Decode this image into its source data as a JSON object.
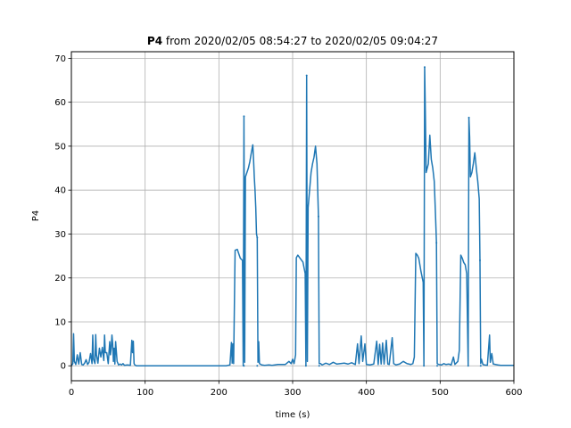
{
  "chart_data": {
    "type": "line",
    "title": {
      "prefix": "P4",
      "rest": " from 2020/02/05 08:54:27 to 2020/02/05 09:04:27"
    },
    "xlabel": "time (s)",
    "ylabel": "P4",
    "xlim": [
      0,
      600
    ],
    "ylim": [
      -3.4,
      71.5
    ],
    "xticks": [
      0,
      100,
      200,
      300,
      400,
      500,
      600
    ],
    "yticks": [
      0,
      10,
      20,
      30,
      40,
      50,
      60,
      70
    ],
    "grid": true,
    "line_color": "#1f77b4",
    "series": [
      {
        "points": [
          [
            0,
            0
          ],
          [
            2,
            0.5
          ],
          [
            3,
            7.3
          ],
          [
            4,
            1.0
          ],
          [
            6,
            0.3
          ],
          [
            8,
            2.5
          ],
          [
            10,
            0.4
          ],
          [
            12,
            3.0
          ],
          [
            14,
            0.3
          ],
          [
            16,
            0.2
          ],
          [
            18,
            0.6
          ],
          [
            20,
            1.4
          ],
          [
            22,
            0.3
          ],
          [
            24,
            0.8
          ],
          [
            26,
            2.8
          ],
          [
            28,
            0.5
          ],
          [
            29,
            7.0
          ],
          [
            30,
            1.5
          ],
          [
            32,
            0.5
          ],
          [
            33,
            7.1
          ],
          [
            34,
            2.5
          ],
          [
            36,
            0.6
          ],
          [
            38,
            4.0
          ],
          [
            40,
            2.0
          ],
          [
            42,
            4.2
          ],
          [
            44,
            1.2
          ],
          [
            45,
            7.0
          ],
          [
            46,
            3.0
          ],
          [
            48,
            3.0
          ],
          [
            50,
            0.5
          ],
          [
            52,
            5.5
          ],
          [
            53,
            2.5
          ],
          [
            54,
            4.0
          ],
          [
            55,
            7.0
          ],
          [
            56,
            5.0
          ],
          [
            57,
            1.0
          ],
          [
            58,
            4.0
          ],
          [
            59,
            0.4
          ],
          [
            60,
            5.5
          ],
          [
            62,
            1.0
          ],
          [
            64,
            0.2
          ],
          [
            66,
            0.4
          ],
          [
            68,
            0.2
          ],
          [
            70,
            0.5
          ],
          [
            72,
            0.1
          ],
          [
            76,
            0.2
          ],
          [
            80,
            0.1
          ],
          [
            82,
            5.8
          ],
          [
            83,
            3.0
          ],
          [
            84,
            5.6
          ],
          [
            85,
            0.5
          ],
          [
            86,
            0.2
          ],
          [
            88,
            0
          ],
          [
            100,
            0
          ],
          [
            120,
            0
          ],
          [
            140,
            0
          ],
          [
            160,
            0
          ],
          [
            180,
            0
          ],
          [
            200,
            0
          ],
          [
            210,
            0
          ],
          [
            215,
            0.2
          ],
          [
            217,
            5.3
          ],
          [
            218,
            0.6
          ],
          [
            219,
            5.0
          ],
          [
            220,
            0.5
          ],
          [
            221,
            13.5
          ],
          [
            222,
            26.3
          ],
          [
            225,
            26.5
          ],
          [
            227,
            25.5
          ],
          [
            229,
            24.5
          ],
          [
            232,
            24.0
          ],
          [
            233,
            0
          ],
          [
            234,
            56.8
          ],
          [
            235,
            0.8
          ],
          [
            236,
            43.0
          ],
          [
            238,
            44.0
          ],
          [
            240,
            45.0
          ],
          [
            242,
            46.5
          ],
          [
            244,
            48.5
          ],
          [
            246,
            50.3
          ],
          [
            247,
            47.0
          ],
          [
            248,
            43.0
          ],
          [
            249,
            40.0
          ],
          [
            250,
            36.0
          ],
          [
            251,
            30.0
          ],
          [
            252,
            29.2
          ],
          [
            253,
            0.8
          ],
          [
            254,
            5.5
          ],
          [
            255,
            0.5
          ],
          [
            258,
            0.2
          ],
          [
            262,
            0.1
          ],
          [
            268,
            0.2
          ],
          [
            272,
            0.1
          ],
          [
            280,
            0.3
          ],
          [
            290,
            0.3
          ],
          [
            295,
            1.0
          ],
          [
            298,
            0.5
          ],
          [
            300,
            1.5
          ],
          [
            302,
            0.5
          ],
          [
            304,
            2.5
          ],
          [
            305,
            24.6
          ],
          [
            307,
            25.2
          ],
          [
            310,
            24.5
          ],
          [
            314,
            23.6
          ],
          [
            317,
            21.0
          ],
          [
            318,
            0
          ],
          [
            319,
            66.1
          ],
          [
            320,
            1.0
          ],
          [
            321,
            36.0
          ],
          [
            323,
            40.0
          ],
          [
            325,
            44.0
          ],
          [
            327,
            46.0
          ],
          [
            329,
            47.5
          ],
          [
            331,
            50.0
          ],
          [
            333,
            46.0
          ],
          [
            335,
            34.0
          ],
          [
            336,
            0.5
          ],
          [
            338,
            0.5
          ],
          [
            340,
            0.2
          ],
          [
            345,
            0.6
          ],
          [
            350,
            0.3
          ],
          [
            355,
            0.8
          ],
          [
            360,
            0.4
          ],
          [
            365,
            0.5
          ],
          [
            370,
            0.6
          ],
          [
            375,
            0.4
          ],
          [
            380,
            0.7
          ],
          [
            385,
            0.3
          ],
          [
            388,
            5.0
          ],
          [
            390,
            0.5
          ],
          [
            393,
            6.8
          ],
          [
            395,
            1.0
          ],
          [
            398,
            5.0
          ],
          [
            400,
            0.3
          ],
          [
            405,
            0.2
          ],
          [
            410,
            0.4
          ],
          [
            414,
            5.6
          ],
          [
            416,
            0.3
          ],
          [
            418,
            4.9
          ],
          [
            420,
            0.4
          ],
          [
            422,
            5.2
          ],
          [
            424,
            0.4
          ],
          [
            427,
            5.8
          ],
          [
            429,
            0.4
          ],
          [
            431,
            0.3
          ],
          [
            435,
            6.4
          ],
          [
            437,
            0.5
          ],
          [
            440,
            0.2
          ],
          [
            445,
            0.4
          ],
          [
            450,
            1.0
          ],
          [
            455,
            0.5
          ],
          [
            460,
            0.3
          ],
          [
            463,
            0.5
          ],
          [
            465,
            2.0
          ],
          [
            467,
            25.6
          ],
          [
            469,
            25.2
          ],
          [
            471,
            24.5
          ],
          [
            474,
            21.5
          ],
          [
            477,
            19.0
          ],
          [
            478,
            0
          ],
          [
            479,
            68.0
          ],
          [
            480,
            57.0
          ],
          [
            481,
            44.0
          ],
          [
            484,
            46.0
          ],
          [
            486,
            52.5
          ],
          [
            488,
            47.0
          ],
          [
            490,
            45.0
          ],
          [
            492,
            42.0
          ],
          [
            494,
            33.0
          ],
          [
            495,
            28.0
          ],
          [
            496,
            0.5
          ],
          [
            498,
            0.3
          ],
          [
            502,
            0.2
          ],
          [
            505,
            0.5
          ],
          [
            508,
            0.3
          ],
          [
            512,
            0.4
          ],
          [
            515,
            0.2
          ],
          [
            518,
            2.0
          ],
          [
            520,
            0.3
          ],
          [
            524,
            1.0
          ],
          [
            526,
            3.5
          ],
          [
            528,
            25.2
          ],
          [
            530,
            24.5
          ],
          [
            532,
            23.5
          ],
          [
            534,
            23.0
          ],
          [
            536,
            21.0
          ],
          [
            538,
            0
          ],
          [
            539,
            56.5
          ],
          [
            540,
            52.0
          ],
          [
            541,
            43.0
          ],
          [
            543,
            44.0
          ],
          [
            545,
            46.0
          ],
          [
            547,
            48.5
          ],
          [
            549,
            45.0
          ],
          [
            551,
            42.0
          ],
          [
            553,
            38.0
          ],
          [
            554,
            24.0
          ],
          [
            555,
            0.5
          ],
          [
            556,
            1.5
          ],
          [
            558,
            0.3
          ],
          [
            560,
            0.2
          ],
          [
            564,
            0.1
          ],
          [
            567,
            7.0
          ],
          [
            568,
            0.8
          ],
          [
            570,
            2.8
          ],
          [
            572,
            0.4
          ],
          [
            575,
            0.3
          ],
          [
            578,
            0.2
          ],
          [
            582,
            0.1
          ],
          [
            588,
            0.1
          ],
          [
            594,
            0.1
          ],
          [
            600,
            0.1
          ]
        ],
        "markers": [
          [
            234,
            0
          ],
          [
            234,
            56.8
          ],
          [
            252,
            29.2
          ],
          [
            252,
            0
          ],
          [
            318,
            0
          ],
          [
            319,
            66.1
          ],
          [
            335,
            34
          ],
          [
            336,
            0
          ],
          [
            478,
            0
          ],
          [
            479,
            68.0
          ],
          [
            495,
            28
          ],
          [
            496,
            0
          ],
          [
            538,
            0
          ],
          [
            539,
            56.5
          ],
          [
            554,
            24
          ],
          [
            555,
            0
          ]
        ]
      }
    ]
  }
}
